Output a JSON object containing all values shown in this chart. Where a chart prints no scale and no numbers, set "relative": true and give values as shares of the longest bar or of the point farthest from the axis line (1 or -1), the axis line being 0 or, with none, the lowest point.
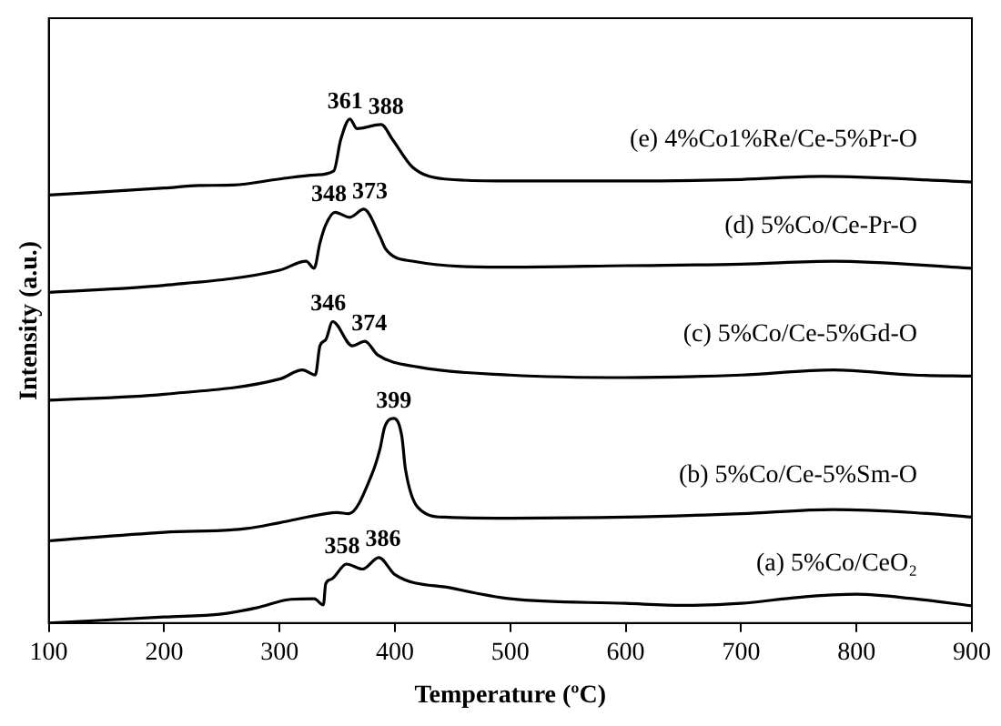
{
  "chart_data": {
    "type": "line",
    "xlabel": "Temperature (ºC)",
    "ylabel": "Intensity (a.u.)",
    "relative": true,
    "xlim": [
      100,
      900
    ],
    "xticks": [
      100,
      200,
      300,
      400,
      500,
      600,
      700,
      800,
      900
    ],
    "tick_labels": "x",
    "grid": false,
    "legend": false,
    "marker": "none",
    "line_style": "solid",
    "series": [
      {
        "name": "(a) 5%Co/CeO₂",
        "color": "#000000",
        "x": [
          100,
          200,
          250,
          280,
          310,
          330,
          338,
          340,
          345,
          358,
          372,
          386,
          400,
          450,
          500,
          600,
          650,
          700,
          750,
          800,
          850,
          900
        ],
        "values": [
          0,
          0.012,
          0.018,
          0.03,
          0.047,
          0.048,
          0.036,
          0.078,
          0.087,
          0.117,
          0.107,
          0.13,
          0.096,
          0.069,
          0.048,
          0.039,
          0.035,
          0.039,
          0.051,
          0.057,
          0.048,
          0.034
        ]
      },
      {
        "name": "(b) 5%Co/Ce-5%Sm-O",
        "color": "#000000",
        "x": [
          100,
          200,
          270,
          300,
          340,
          350,
          360,
          380,
          387,
          391,
          399,
          406,
          409,
          420,
          443,
          500,
          600,
          700,
          780,
          850,
          900
        ],
        "values": [
          0.163,
          0.18,
          0.187,
          0.199,
          0.217,
          0.219,
          0.217,
          0.295,
          0.345,
          0.388,
          0.406,
          0.37,
          0.307,
          0.229,
          0.21,
          0.208,
          0.21,
          0.217,
          0.225,
          0.219,
          0.21
        ]
      },
      {
        "name": "(c) 5%Co/Ce-5%Gd-O",
        "color": "#000000",
        "x": [
          100,
          200,
          300,
          320,
          331,
          335,
          340,
          346,
          363,
          374,
          385,
          420,
          500,
          600,
          700,
          780,
          850,
          900
        ],
        "values": [
          0.442,
          0.454,
          0.484,
          0.502,
          0.492,
          0.55,
          0.562,
          0.598,
          0.55,
          0.559,
          0.532,
          0.508,
          0.492,
          0.487,
          0.492,
          0.502,
          0.492,
          0.49
        ]
      },
      {
        "name": "(d) 5%Co/Ce-Pr-O",
        "color": "#000000",
        "x": [
          100,
          200,
          300,
          323,
          330,
          335,
          340,
          348,
          361,
          373,
          387,
          392,
          415,
          500,
          600,
          700,
          780,
          900
        ],
        "values": [
          0.656,
          0.67,
          0.7,
          0.718,
          0.704,
          0.754,
          0.79,
          0.815,
          0.805,
          0.821,
          0.767,
          0.742,
          0.718,
          0.706,
          0.709,
          0.712,
          0.718,
          0.704
        ]
      },
      {
        "name": "(e) 4%Co1%Re/Ce-5%Pr-O",
        "color": "#000000",
        "x": [
          100,
          200,
          230,
          260,
          300,
          331,
          347,
          353,
          361,
          367,
          388,
          398,
          415,
          443,
          500,
          600,
          700,
          770,
          900
        ],
        "values": [
          0.849,
          0.863,
          0.868,
          0.869,
          0.881,
          0.889,
          0.897,
          0.959,
          1,
          0.981,
          0.989,
          0.959,
          0.905,
          0.881,
          0.877,
          0.877,
          0.88,
          0.886,
          0.875
        ]
      }
    ],
    "annotations": [
      {
        "text": "358",
        "x": 358,
        "y": 0.117
      },
      {
        "text": "386",
        "x": 386,
        "y": 0.13
      },
      {
        "text": "399",
        "x": 399,
        "y": 0.406
      },
      {
        "text": "346",
        "x": 346,
        "y": 0.598
      },
      {
        "text": "374",
        "x": 374,
        "y": 0.559
      },
      {
        "text": "348",
        "x": 348,
        "y": 0.815
      },
      {
        "text": "373",
        "x": 373,
        "y": 0.821
      },
      {
        "text": "361",
        "x": 361,
        "y": 1
      },
      {
        "text": "388",
        "x": 388,
        "y": 0.989
      }
    ]
  }
}
